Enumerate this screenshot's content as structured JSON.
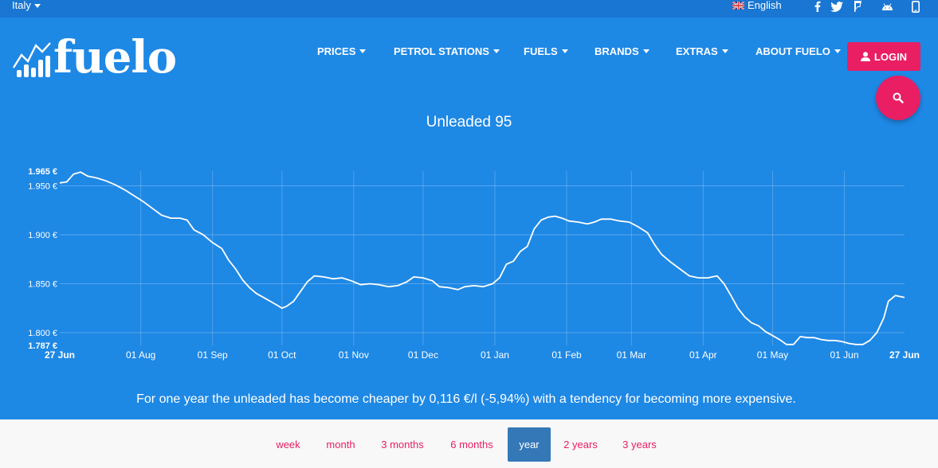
{
  "topbar": {
    "country": "Italy",
    "language": "English",
    "social_icons": [
      "facebook-icon",
      "twitter-icon",
      "foursquare-icon",
      "android-icon",
      "mobile-icon"
    ]
  },
  "brand": {
    "logo_text": "fuelo"
  },
  "nav": [
    {
      "label": "PRICES"
    },
    {
      "label": "PETROL STATIONS"
    },
    {
      "label": "FUELS"
    },
    {
      "label": "BRANDS"
    },
    {
      "label": "EXTRAS"
    },
    {
      "label": "ABOUT FUELO"
    }
  ],
  "login_label": "LOGIN",
  "colors": {
    "header_bg": "#1e88e5",
    "topbar_bg": "#1976d2",
    "accent": "#e91e63",
    "active_period": "#3478b8"
  },
  "chart_data": {
    "type": "line",
    "title": "Unleaded 95",
    "y_ticks": [
      "1.800 €",
      "1.850 €",
      "1.900 €",
      "1.950 €"
    ],
    "y_min_label": "1.787 €",
    "y_max_label": "1.965 €",
    "ylim": [
      1.787,
      1.965
    ],
    "x_ticks": [
      "01 Aug",
      "01 Sep",
      "01 Oct",
      "01 Nov",
      "01 Dec",
      "01 Jan",
      "01 Feb",
      "01 Mar",
      "01 Apr",
      "01 May",
      "01 Jun"
    ],
    "x_start_label": "27 Jun",
    "x_end_label": "27 Jun",
    "x_tick_days": [
      35,
      66,
      96,
      127,
      157,
      188,
      219,
      247,
      278,
      308,
      339
    ],
    "total_days": 365,
    "grid": true,
    "series": [
      {
        "points": [
          [
            0,
            1.953
          ],
          [
            3,
            1.954
          ],
          [
            6,
            1.962
          ],
          [
            9,
            1.964
          ],
          [
            12,
            1.96
          ],
          [
            16,
            1.958
          ],
          [
            20,
            1.955
          ],
          [
            24,
            1.951
          ],
          [
            28,
            1.946
          ],
          [
            32,
            1.94
          ],
          [
            36,
            1.934
          ],
          [
            40,
            1.927
          ],
          [
            44,
            1.92
          ],
          [
            48,
            1.917
          ],
          [
            52,
            1.917
          ],
          [
            55,
            1.915
          ],
          [
            58,
            1.905
          ],
          [
            62,
            1.9
          ],
          [
            66,
            1.892
          ],
          [
            70,
            1.886
          ],
          [
            73,
            1.874
          ],
          [
            76,
            1.865
          ],
          [
            79,
            1.854
          ],
          [
            82,
            1.846
          ],
          [
            85,
            1.84
          ],
          [
            88,
            1.836
          ],
          [
            91,
            1.832
          ],
          [
            94,
            1.828
          ],
          [
            96,
            1.825
          ],
          [
            98,
            1.827
          ],
          [
            101,
            1.832
          ],
          [
            104,
            1.842
          ],
          [
            107,
            1.852
          ],
          [
            110,
            1.858
          ],
          [
            114,
            1.857
          ],
          [
            118,
            1.855
          ],
          [
            122,
            1.856
          ],
          [
            126,
            1.853
          ],
          [
            130,
            1.849
          ],
          [
            134,
            1.85
          ],
          [
            138,
            1.849
          ],
          [
            142,
            1.847
          ],
          [
            146,
            1.848
          ],
          [
            150,
            1.852
          ],
          [
            153,
            1.857
          ],
          [
            157,
            1.856
          ],
          [
            161,
            1.853
          ],
          [
            164,
            1.847
          ],
          [
            168,
            1.846
          ],
          [
            172,
            1.844
          ],
          [
            175,
            1.847
          ],
          [
            179,
            1.848
          ],
          [
            183,
            1.847
          ],
          [
            187,
            1.85
          ],
          [
            190,
            1.856
          ],
          [
            193,
            1.87
          ],
          [
            196,
            1.873
          ],
          [
            199,
            1.883
          ],
          [
            202,
            1.888
          ],
          [
            205,
            1.906
          ],
          [
            208,
            1.915
          ],
          [
            211,
            1.918
          ],
          [
            214,
            1.919
          ],
          [
            217,
            1.917
          ],
          [
            220,
            1.914
          ],
          [
            224,
            1.913
          ],
          [
            228,
            1.911
          ],
          [
            231,
            1.913
          ],
          [
            234,
            1.916
          ],
          [
            238,
            1.916
          ],
          [
            242,
            1.914
          ],
          [
            246,
            1.913
          ],
          [
            250,
            1.908
          ],
          [
            254,
            1.902
          ],
          [
            257,
            1.89
          ],
          [
            260,
            1.88
          ],
          [
            264,
            1.872
          ],
          [
            268,
            1.865
          ],
          [
            272,
            1.858
          ],
          [
            276,
            1.856
          ],
          [
            280,
            1.856
          ],
          [
            284,
            1.858
          ],
          [
            287,
            1.85
          ],
          [
            290,
            1.838
          ],
          [
            293,
            1.825
          ],
          [
            296,
            1.816
          ],
          [
            299,
            1.81
          ],
          [
            302,
            1.807
          ],
          [
            305,
            1.801
          ],
          [
            308,
            1.797
          ],
          [
            311,
            1.793
          ],
          [
            314,
            1.788
          ],
          [
            317,
            1.788
          ],
          [
            320,
            1.796
          ],
          [
            323,
            1.795
          ],
          [
            326,
            1.795
          ],
          [
            329,
            1.793
          ],
          [
            332,
            1.792
          ],
          [
            335,
            1.792
          ],
          [
            338,
            1.791
          ],
          [
            341,
            1.789
          ],
          [
            344,
            1.788
          ],
          [
            347,
            1.788
          ],
          [
            350,
            1.792
          ],
          [
            353,
            1.8
          ],
          [
            356,
            1.815
          ],
          [
            358,
            1.832
          ],
          [
            361,
            1.838
          ],
          [
            363,
            1.837
          ],
          [
            365,
            1.836
          ]
        ]
      }
    ]
  },
  "summary": "For one year the unleaded has become cheaper by 0,116 €/l (-5,94%) with a tendency for becoming more expensive.",
  "periods": [
    {
      "label": "week",
      "active": false
    },
    {
      "label": "month",
      "active": false
    },
    {
      "label": "3 months",
      "active": false
    },
    {
      "label": "6 months",
      "active": false
    },
    {
      "label": "year",
      "active": true
    },
    {
      "label": "2 years",
      "active": false
    },
    {
      "label": "3 years",
      "active": false
    }
  ]
}
